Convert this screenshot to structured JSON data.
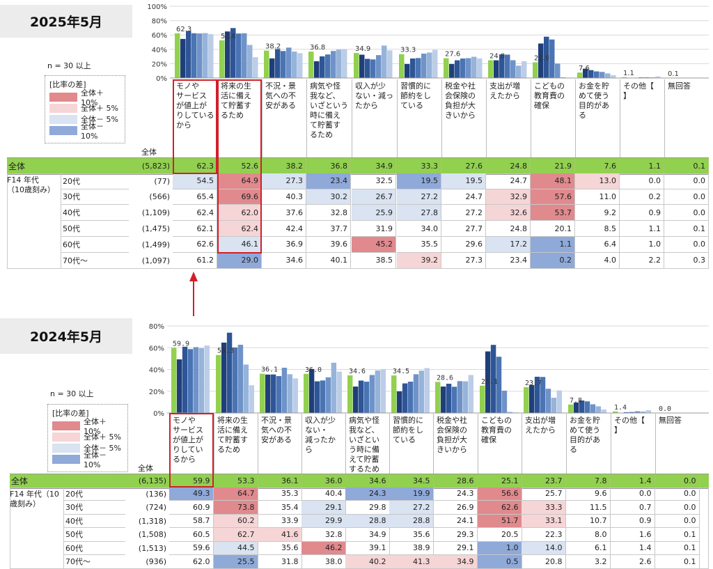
{
  "colors": {
    "green": "#92d050",
    "plus10": "#e08a8e",
    "plus5": "#f6d5d6",
    "minus5": "#d9e3f1",
    "minus10": "#8fa9d9",
    "bars": [
      "#1f3f7a",
      "#2e5596",
      "#4a74b4",
      "#6f93c8",
      "#96b3da",
      "#bccde8"
    ]
  },
  "panels": [
    {
      "year_label": "2025年5月",
      "n_label": "n = 30 以上",
      "legend": {
        "title": "[比率の差]",
        "items": [
          "全体＋10%",
          "全体＋ 5%",
          "全体－ 5%",
          "全体－10%"
        ]
      },
      "total_header": "全体",
      "categories": [
        "モノやサービスが値上がりしているから",
        "将来の生活に備えて貯蓄するため",
        "不況・景気への不安がある",
        "病気や怪我など、いざという時に備えて貯蓄するため",
        "収入が少ない・減ったから",
        "習慣的に節約をしている",
        "税金や社会保険の負担が大きいから",
        "支出が増えたから",
        "こどもの教育費の確保",
        "お金を貯めて使う目的がある",
        "その他【】",
        "無回答"
      ],
      "cat_labels": [
        "モノや\nサービス\nが値上が\nりしている\nから",
        "将来の生\n活に備え\nて貯蓄す\nるため",
        "不況・景\n気への不\n安がある",
        "病気や怪\n我など、\nいざという\n時に備え\nて貯蓄す\nるため",
        "収入が少\nない・減っ\nたから",
        "習慣的に\n節約をし\nている",
        "税金や社\n会保険の\n負担が大\nきいから",
        "支出が増\nえたから",
        "こどもの\n教育費の\n確保",
        "お金を貯\nめて使う\n目的があ\nる",
        "その他【\n】",
        "無回答"
      ],
      "total": {
        "label": "全体",
        "n": "(5,823)",
        "values": [
          "62.3",
          "52.6",
          "38.2",
          "36.8",
          "34.9",
          "33.3",
          "27.6",
          "24.8",
          "21.9",
          "7.6",
          "1.1",
          "0.1"
        ]
      },
      "group_label": "F14 年代\n（10歳刻み）",
      "rows": [
        {
          "label": "20代",
          "n": "(77)",
          "values": [
            "54.5",
            "64.9",
            "27.3",
            "23.4",
            "32.5",
            "19.5",
            "19.5",
            "24.7",
            "48.1",
            "13.0",
            "0.0",
            "0.0"
          ],
          "shade": [
            "m5",
            "p10",
            "m5",
            "m10",
            "",
            "m10",
            "m5",
            "",
            "p10",
            "p5",
            "",
            ""
          ]
        },
        {
          "label": "30代",
          "n": "(566)",
          "values": [
            "65.4",
            "69.6",
            "40.3",
            "30.2",
            "26.7",
            "27.2",
            "24.7",
            "32.9",
            "57.6",
            "11.0",
            "0.2",
            "0.0"
          ],
          "shade": [
            "",
            "p10",
            "",
            "m5",
            "m5",
            "m5",
            "",
            "p5",
            "p10",
            "",
            "",
            ""
          ]
        },
        {
          "label": "40代",
          "n": "(1,109)",
          "values": [
            "62.4",
            "62.0",
            "37.6",
            "32.8",
            "25.9",
            "27.8",
            "27.2",
            "32.6",
            "53.7",
            "9.2",
            "0.9",
            "0.0"
          ],
          "shade": [
            "",
            "p5",
            "",
            "",
            "m5",
            "m5",
            "",
            "p5",
            "p10",
            "",
            "",
            ""
          ]
        },
        {
          "label": "50代",
          "n": "(1,475)",
          "values": [
            "62.1",
            "62.4",
            "42.4",
            "37.7",
            "31.9",
            "34.0",
            "27.7",
            "24.8",
            "20.1",
            "8.5",
            "1.1",
            "0.1"
          ],
          "shade": [
            "",
            "p5",
            "",
            "",
            "",
            "",
            "",
            "",
            "",
            "",
            "",
            ""
          ]
        },
        {
          "label": "60代",
          "n": "(1,499)",
          "values": [
            "62.6",
            "46.1",
            "36.9",
            "39.6",
            "45.2",
            "35.5",
            "29.6",
            "17.2",
            "1.1",
            "6.4",
            "1.0",
            "0.0"
          ],
          "shade": [
            "",
            "m5",
            "",
            "",
            "p10",
            "",
            "",
            "m5",
            "m10",
            "",
            "",
            ""
          ]
        },
        {
          "label": "70代～",
          "n": "(1,097)",
          "values": [
            "61.2",
            "29.0",
            "34.6",
            "40.1",
            "38.5",
            "39.2",
            "27.3",
            "23.4",
            "0.2",
            "4.0",
            "2.2",
            "0.3"
          ],
          "shade": [
            "",
            "m10",
            "",
            "",
            "",
            "p5",
            "",
            "",
            "m10",
            "",
            "",
            ""
          ]
        }
      ],
      "yticks": [
        "0%",
        "20%",
        "40%",
        "60%",
        "80%",
        "100%"
      ]
    },
    {
      "year_label": "2024年5月",
      "n_label": "n = 30 以上",
      "legend": {
        "title": "[比率の差]",
        "items": [
          "全体＋10%",
          "全体＋ 5%",
          "全体－ 5%",
          "全体－10%"
        ]
      },
      "total_header": "全体",
      "categories": [
        "モノやサービスが値上がりしているから",
        "将来の生活に備えて貯蓄するため",
        "不況・景気への不安がある",
        "収入が少ない・減ったから",
        "病気や怪我など、いざという時に備えて貯蓄するため",
        "習慣的に節約をしている",
        "税金や社会保険の負担が大きいから",
        "こどもの教育費の確保",
        "支出が増えたから",
        "お金を貯めて使う目的がある",
        "その他【】",
        "無回答"
      ],
      "cat_labels": [
        "モノや\nサービス\nが値上が\nりしてい\nるから",
        "将来の生\n活に備え\nて貯蓄す\nるため",
        "不況・景\n気への不\n安がある",
        "収入が少\nない・\n減ったか\nら",
        "病気や怪\n我など、\nいざとい\nう時に備\nえて貯蓄\nするため",
        "習慣的に\n節約をし\nている",
        "税金や社\n会保険の\n負担が大\nきいから",
        "こどもの\n教育費の\n確保",
        "支出が増\nえたから",
        "お金を貯\nめて使う\n目的があ\nる",
        "その他【\n】",
        "無回答"
      ],
      "total": {
        "label": "全体",
        "n": "(6,135)",
        "values": [
          "59.9",
          "53.3",
          "36.1",
          "36.0",
          "34.6",
          "34.5",
          "28.6",
          "25.1",
          "23.7",
          "7.8",
          "1.4",
          "0.0"
        ]
      },
      "group_label": "F14 年代（10\n歳刻み）",
      "rows": [
        {
          "label": "20代",
          "n": "(136)",
          "values": [
            "49.3",
            "64.7",
            "35.3",
            "40.4",
            "24.3",
            "19.9",
            "24.3",
            "56.6",
            "25.7",
            "9.6",
            "0.0",
            "0.0"
          ],
          "shade": [
            "m10",
            "p10",
            "",
            "",
            "m10",
            "m10",
            "",
            "p10",
            "",
            "",
            "",
            ""
          ]
        },
        {
          "label": "30代",
          "n": "(724)",
          "values": [
            "60.9",
            "73.8",
            "35.4",
            "29.1",
            "29.8",
            "27.2",
            "26.9",
            "62.6",
            "33.3",
            "11.5",
            "0.7",
            "0.0"
          ],
          "shade": [
            "",
            "p10",
            "",
            "m5",
            "",
            "m5",
            "",
            "p10",
            "p5",
            "",
            "",
            ""
          ]
        },
        {
          "label": "40代",
          "n": "(1,318)",
          "values": [
            "58.7",
            "60.2",
            "33.9",
            "29.9",
            "28.8",
            "28.8",
            "24.1",
            "51.7",
            "33.1",
            "10.7",
            "0.9",
            "0.0"
          ],
          "shade": [
            "",
            "p5",
            "",
            "m5",
            "m5",
            "m5",
            "",
            "p10",
            "p5",
            "",
            "",
            ""
          ]
        },
        {
          "label": "50代",
          "n": "(1,508)",
          "values": [
            "60.5",
            "62.7",
            "41.6",
            "32.8",
            "34.9",
            "35.6",
            "29.3",
            "20.5",
            "22.3",
            "8.0",
            "1.6",
            "0.1"
          ],
          "shade": [
            "",
            "p5",
            "p5",
            "",
            "",
            "",
            "",
            "",
            "",
            "",
            "",
            ""
          ]
        },
        {
          "label": "60代",
          "n": "(1,513)",
          "values": [
            "59.6",
            "44.5",
            "35.6",
            "46.2",
            "39.1",
            "38.9",
            "29.1",
            "1.0",
            "14.0",
            "6.1",
            "1.4",
            "0.1"
          ],
          "shade": [
            "",
            "m5",
            "",
            "p10",
            "",
            "",
            "",
            "m10",
            "m5",
            "",
            "",
            ""
          ]
        },
        {
          "label": "70代～",
          "n": "(936)",
          "values": [
            "62.0",
            "25.5",
            "31.8",
            "38.0",
            "40.2",
            "41.3",
            "34.9",
            "0.5",
            "20.8",
            "3.2",
            "2.6",
            "0.1"
          ],
          "shade": [
            "",
            "m10",
            "",
            "",
            "p5",
            "p5",
            "p5",
            "m10",
            "",
            "",
            "",
            ""
          ]
        }
      ],
      "yticks": [
        "0%",
        "20%",
        "40%",
        "60%",
        "80%"
      ]
    }
  ],
  "chart_data": [
    {
      "type": "bar",
      "title": "2025年5月",
      "categories": [
        "モノやサービスが値上がりしているから",
        "将来の生活に備えて貯蓄するため",
        "不況・景気への不安がある",
        "病気や怪我など、いざという時に備えて貯蓄するため",
        "収入が少ない・減ったから",
        "習慣的に節約をしている",
        "税金や社会保険の負担が大きいから",
        "支出が増えたから",
        "こどもの教育費の確保",
        "お金を貯めて使う目的がある",
        "その他【】",
        "無回答"
      ],
      "ylim": [
        0,
        100
      ],
      "series": [
        {
          "name": "全体",
          "values": [
            62.3,
            52.6,
            38.2,
            36.8,
            34.9,
            33.3,
            27.6,
            24.8,
            21.9,
            7.6,
            1.1,
            0.1
          ]
        },
        {
          "name": "20代",
          "values": [
            54.5,
            64.9,
            27.3,
            23.4,
            32.5,
            19.5,
            19.5,
            24.7,
            48.1,
            13.0,
            0.0,
            0.0
          ]
        },
        {
          "name": "30代",
          "values": [
            65.4,
            69.6,
            40.3,
            30.2,
            26.7,
            27.2,
            24.7,
            32.9,
            57.6,
            11.0,
            0.2,
            0.0
          ]
        },
        {
          "name": "40代",
          "values": [
            62.4,
            62.0,
            37.6,
            32.8,
            25.9,
            27.8,
            27.2,
            32.6,
            53.7,
            9.2,
            0.9,
            0.0
          ]
        },
        {
          "name": "50代",
          "values": [
            62.1,
            62.4,
            42.4,
            37.7,
            31.9,
            34.0,
            27.7,
            24.8,
            20.1,
            8.5,
            1.1,
            0.1
          ]
        },
        {
          "name": "60代",
          "values": [
            62.6,
            46.1,
            36.9,
            39.6,
            45.2,
            35.5,
            29.6,
            17.2,
            1.1,
            6.4,
            1.0,
            0.0
          ]
        },
        {
          "name": "70代～",
          "values": [
            61.2,
            29.0,
            34.6,
            40.1,
            38.5,
            39.2,
            27.3,
            23.4,
            0.2,
            4.0,
            2.2,
            0.3
          ]
        }
      ]
    },
    {
      "type": "bar",
      "title": "2024年5月",
      "categories": [
        "モノやサービスが値上がりしているから",
        "将来の生活に備えて貯蓄するため",
        "不況・景気への不安がある",
        "収入が少ない・減ったから",
        "病気や怪我など、いざという時に備えて貯蓄するため",
        "習慣的に節約をしている",
        "税金や社会保険の負担が大きいから",
        "こどもの教育費の確保",
        "支出が増えたから",
        "お金を貯めて使う目的がある",
        "その他【】",
        "無回答"
      ],
      "ylim": [
        0,
        80
      ],
      "series": [
        {
          "name": "全体",
          "values": [
            59.9,
            53.3,
            36.1,
            36.0,
            34.6,
            34.5,
            28.6,
            25.1,
            23.7,
            7.8,
            1.4,
            0.0
          ]
        },
        {
          "name": "20代",
          "values": [
            49.3,
            64.7,
            35.3,
            40.4,
            24.3,
            19.9,
            24.3,
            56.6,
            25.7,
            9.6,
            0.0,
            0.0
          ]
        },
        {
          "name": "30代",
          "values": [
            60.9,
            73.8,
            35.4,
            29.1,
            29.8,
            27.2,
            26.9,
            62.6,
            33.3,
            11.5,
            0.7,
            0.0
          ]
        },
        {
          "name": "40代",
          "values": [
            58.7,
            60.2,
            33.9,
            29.9,
            28.8,
            28.8,
            24.1,
            51.7,
            33.1,
            10.7,
            0.9,
            0.0
          ]
        },
        {
          "name": "50代",
          "values": [
            60.5,
            62.7,
            41.6,
            32.8,
            34.9,
            35.6,
            29.3,
            20.5,
            22.3,
            8.0,
            1.6,
            0.1
          ]
        },
        {
          "name": "60代",
          "values": [
            59.6,
            44.5,
            35.6,
            46.2,
            39.1,
            38.9,
            29.1,
            1.0,
            14.0,
            6.1,
            1.4,
            0.1
          ]
        },
        {
          "name": "70代～",
          "values": [
            62.0,
            25.5,
            31.8,
            38.0,
            40.2,
            41.3,
            34.9,
            0.5,
            20.8,
            3.2,
            2.6,
            0.1
          ]
        }
      ]
    }
  ]
}
